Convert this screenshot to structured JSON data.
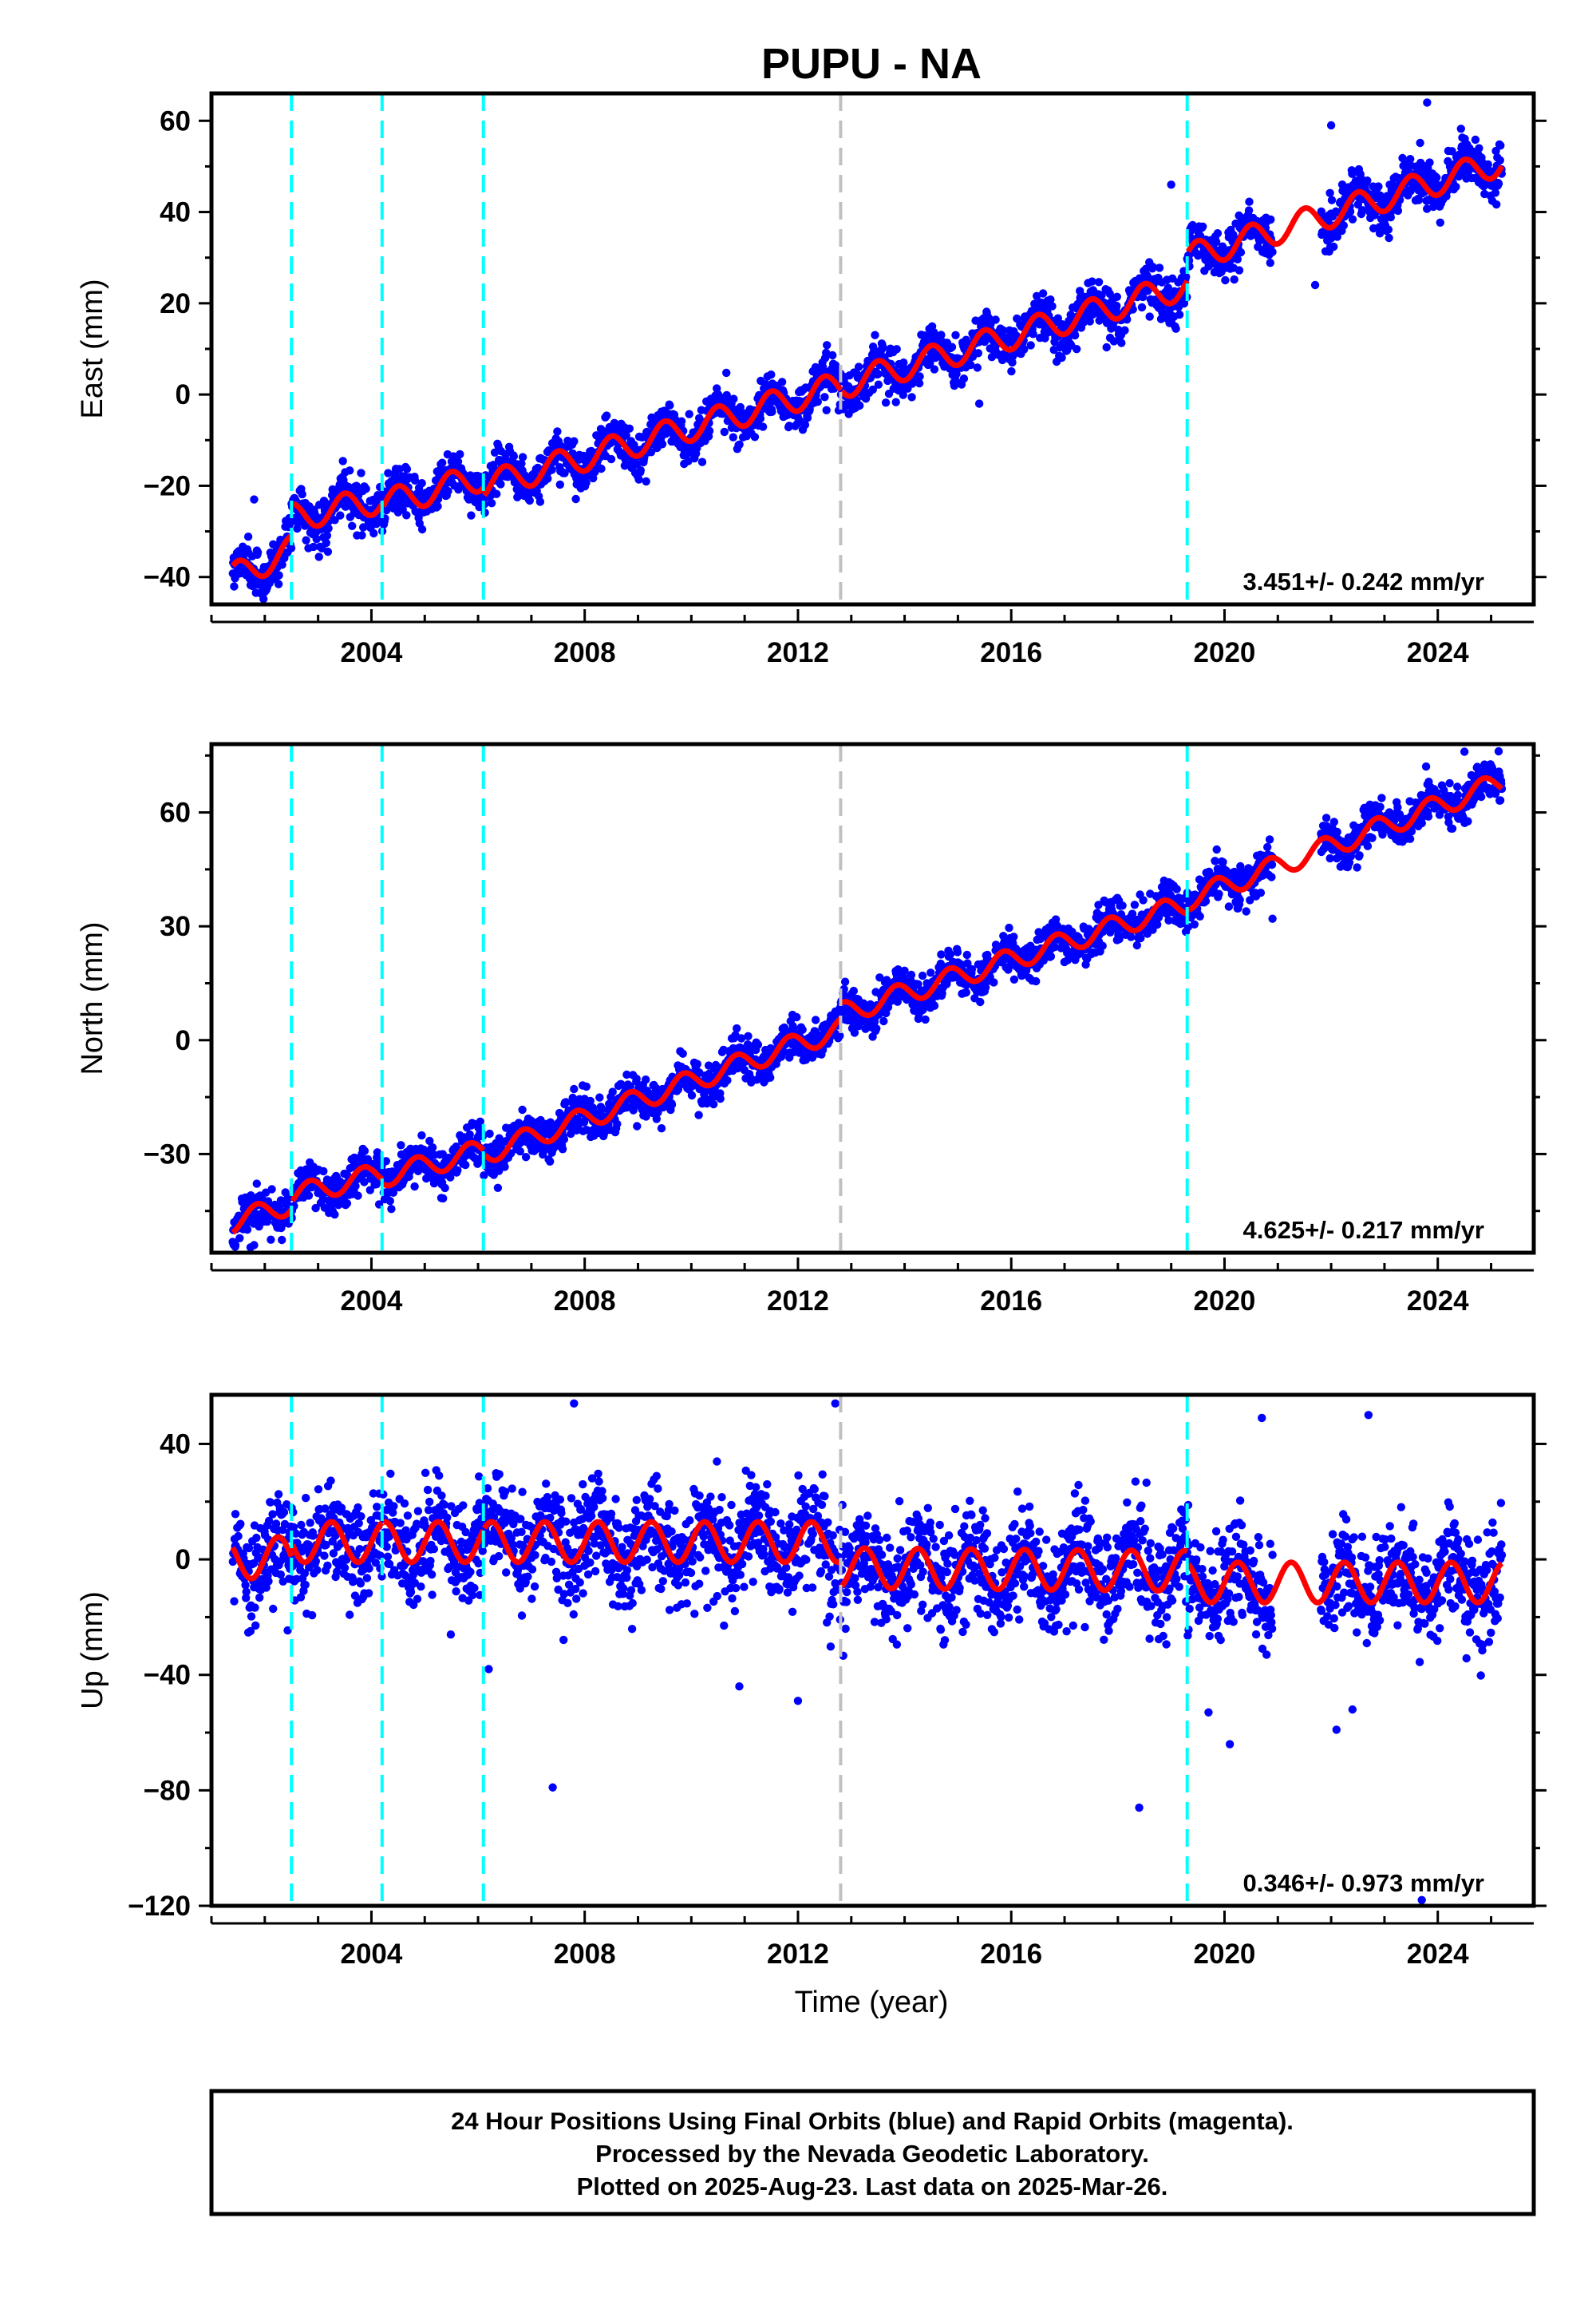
{
  "title": "PUPU - NA",
  "xlabel": "Time (year)",
  "footer": {
    "lines": [
      "24 Hour Positions Using Final Orbits (blue) and Rapid Orbits (magenta).",
      "Processed by the Nevada Geodetic Laboratory.",
      "Plotted on 2025-Aug-23. Last data on 2025-Mar-26."
    ]
  },
  "colors": {
    "data_points": "#0000ff",
    "model_fit": "#ff0000",
    "equipment_change": "#00ffff",
    "other_event": "#c0c0c0"
  },
  "chart_data": [
    {
      "type": "scatter",
      "component": "East",
      "ylabel": "East (mm)",
      "xlim": [
        2001.0,
        2025.8
      ],
      "ylim": [
        -46,
        66
      ],
      "xticks": [
        2004,
        2008,
        2012,
        2016,
        2020,
        2024
      ],
      "xtick_labels": [
        "2004",
        "2008",
        "2012",
        "2016",
        "2020",
        "2024"
      ],
      "yticks": [
        -40,
        -20,
        0,
        20,
        40,
        60
      ],
      "ytick_labels": [
        "−40",
        "−20",
        "0",
        "20",
        "40",
        "60"
      ],
      "rate_label": "3.451+/- 0.242 mm/yr",
      "rate_mm_per_yr": 3.451,
      "rate_sigma": 0.242,
      "fit": {
        "amplitude": 3.0,
        "phase_years": 0.25,
        "segments": [
          {
            "x": [
              2001.4,
              2002.5
            ],
            "y": [
              -40,
              -34
            ]
          },
          {
            "x": [
              2002.5,
              2004.2
            ],
            "y": [
              -27,
              -23
            ]
          },
          {
            "x": [
              2004.2,
              2006.1
            ],
            "y": [
              -24,
              -18
            ]
          },
          {
            "x": [
              2006.1,
              2012.8
            ],
            "y": [
              -20,
              2
            ]
          },
          {
            "x": [
              2012.8,
              2019.3
            ],
            "y": [
              2,
              24
            ]
          },
          {
            "x": [
              2019.3,
              2025.2
            ],
            "y": [
              30,
              51
            ]
          }
        ]
      },
      "scatter": {
        "noise_mm": 2.5,
        "gaps": [
          [
            2020.9,
            2021.8
          ]
        ]
      },
      "event_lines": [
        {
          "x": 2002.5,
          "kind": "equipment_change"
        },
        {
          "x": 2004.2,
          "kind": "equipment_change"
        },
        {
          "x": 2006.1,
          "kind": "equipment_change"
        },
        {
          "x": 2012.8,
          "kind": "other_event"
        },
        {
          "x": 2019.3,
          "kind": "equipment_change"
        }
      ],
      "outliers": [
        {
          "x": 2023.8,
          "y": 64
        },
        {
          "x": 2022.0,
          "y": 59
        },
        {
          "x": 2019.0,
          "y": 46
        },
        {
          "x": 2021.7,
          "y": 24
        },
        {
          "x": 2015.4,
          "y": -2
        },
        {
          "x": 2001.8,
          "y": -23
        }
      ]
    },
    {
      "type": "scatter",
      "component": "North",
      "ylabel": "North (mm)",
      "xlim": [
        2001.0,
        2025.8
      ],
      "ylim": [
        -56,
        78
      ],
      "xticks": [
        2004,
        2008,
        2012,
        2016,
        2020,
        2024
      ],
      "xtick_labels": [
        "2004",
        "2008",
        "2012",
        "2016",
        "2020",
        "2024"
      ],
      "yticks": [
        -30,
        0,
        30,
        60
      ],
      "ytick_labels": [
        "−30",
        "0",
        "30",
        "60"
      ],
      "rate_label": "4.625+/- 0.217 mm/yr",
      "rate_mm_per_yr": 4.625,
      "rate_sigma": 0.217,
      "fit": {
        "amplitude": 2.8,
        "phase_years": 0.6,
        "segments": [
          {
            "x": [
              2001.4,
              2002.5
            ],
            "y": [
              -48,
              -43
            ]
          },
          {
            "x": [
              2002.5,
              2004.2
            ],
            "y": [
              -41,
              -35
            ]
          },
          {
            "x": [
              2004.2,
              2006.1
            ],
            "y": [
              -36,
              -29
            ]
          },
          {
            "x": [
              2006.1,
              2012.8
            ],
            "y": [
              -30,
              3
            ]
          },
          {
            "x": [
              2012.8,
              2019.3
            ],
            "y": [
              7,
              36
            ]
          },
          {
            "x": [
              2019.3,
              2025.2
            ],
            "y": [
              37,
              68
            ]
          }
        ]
      },
      "scatter": {
        "noise_mm": 2.6,
        "gaps": [
          [
            2020.9,
            2021.8
          ]
        ]
      },
      "event_lines": [
        {
          "x": 2002.5,
          "kind": "equipment_change"
        },
        {
          "x": 2004.2,
          "kind": "equipment_change"
        },
        {
          "x": 2006.1,
          "kind": "equipment_change"
        },
        {
          "x": 2012.8,
          "kind": "other_event"
        },
        {
          "x": 2019.3,
          "kind": "equipment_change"
        }
      ],
      "outliers": [
        {
          "x": 2001.8,
          "y": -54
        },
        {
          "x": 2020.9,
          "y": 32
        },
        {
          "x": 2024.5,
          "y": 76
        }
      ]
    },
    {
      "type": "scatter",
      "component": "Up",
      "ylabel": "Up (mm)",
      "xlim": [
        2001.0,
        2025.8
      ],
      "ylim": [
        -120,
        57
      ],
      "xticks": [
        2004,
        2008,
        2012,
        2016,
        2020,
        2024
      ],
      "xtick_labels": [
        "2004",
        "2008",
        "2012",
        "2016",
        "2020",
        "2024"
      ],
      "yticks": [
        -120,
        -80,
        -40,
        0,
        40
      ],
      "ytick_labels": [
        "−120",
        "−80",
        "−40",
        "0",
        "40"
      ],
      "rate_label": "0.346+/- 0.973 mm/yr",
      "rate_mm_per_yr": 0.346,
      "rate_sigma": 0.973,
      "fit": {
        "amplitude": 7.0,
        "phase_years": 0.0,
        "segments": [
          {
            "x": [
              2001.4,
              2002.5
            ],
            "y": [
              0,
              1
            ]
          },
          {
            "x": [
              2002.5,
              2004.2
            ],
            "y": [
              6,
              6
            ]
          },
          {
            "x": [
              2004.2,
              2006.1
            ],
            "y": [
              6,
              6
            ]
          },
          {
            "x": [
              2006.1,
              2012.8
            ],
            "y": [
              6,
              6
            ]
          },
          {
            "x": [
              2012.8,
              2019.3
            ],
            "y": [
              -3,
              -4
            ]
          },
          {
            "x": [
              2019.3,
              2025.2
            ],
            "y": [
              -8,
              -8
            ]
          }
        ]
      },
      "scatter": {
        "noise_mm": 9.0,
        "gaps": [
          [
            2020.9,
            2021.8
          ]
        ]
      },
      "event_lines": [
        {
          "x": 2002.5,
          "kind": "equipment_change"
        },
        {
          "x": 2004.2,
          "kind": "equipment_change"
        },
        {
          "x": 2006.1,
          "kind": "equipment_change"
        },
        {
          "x": 2012.8,
          "kind": "other_event"
        },
        {
          "x": 2019.3,
          "kind": "equipment_change"
        }
      ],
      "outliers": [
        {
          "x": 2007.4,
          "y": -79
        },
        {
          "x": 2018.4,
          "y": -86
        },
        {
          "x": 2023.7,
          "y": -118
        },
        {
          "x": 2012.0,
          "y": -49
        },
        {
          "x": 2010.9,
          "y": -44
        },
        {
          "x": 2006.2,
          "y": -38
        },
        {
          "x": 2007.8,
          "y": 54
        },
        {
          "x": 2012.7,
          "y": 54
        },
        {
          "x": 2022.7,
          "y": 50
        },
        {
          "x": 2020.7,
          "y": 49
        },
        {
          "x": 2020.1,
          "y": -64
        },
        {
          "x": 2022.1,
          "y": -59
        },
        {
          "x": 2022.4,
          "y": -52
        },
        {
          "x": 2019.7,
          "y": -53
        }
      ]
    }
  ]
}
